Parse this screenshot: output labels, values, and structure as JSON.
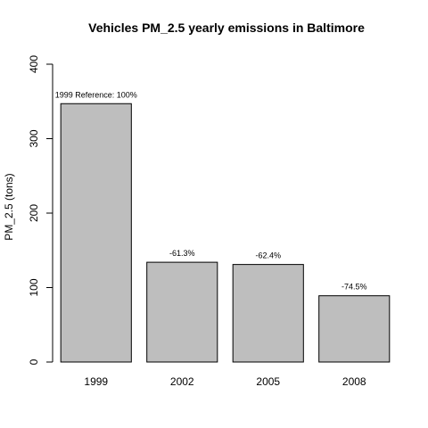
{
  "chart_data": {
    "type": "bar",
    "title": "Vehicles PM_2.5 yearly emissions in Baltimore",
    "xlabel": "",
    "ylabel": "PM_2.5 (tons)",
    "categories": [
      "1999",
      "2002",
      "2005",
      "2008"
    ],
    "values": [
      347,
      134,
      131,
      89
    ],
    "annotations": [
      "1999 Reference: 100%",
      "-61.3%",
      "-62.4%",
      "-74.5%"
    ],
    "yticks": [
      "0",
      "100",
      "200",
      "300",
      "400"
    ],
    "ylim": [
      0,
      400
    ],
    "grid": false,
    "legend": "none",
    "bar_color": "#bebebe",
    "bar_edge_color": "#000000"
  }
}
